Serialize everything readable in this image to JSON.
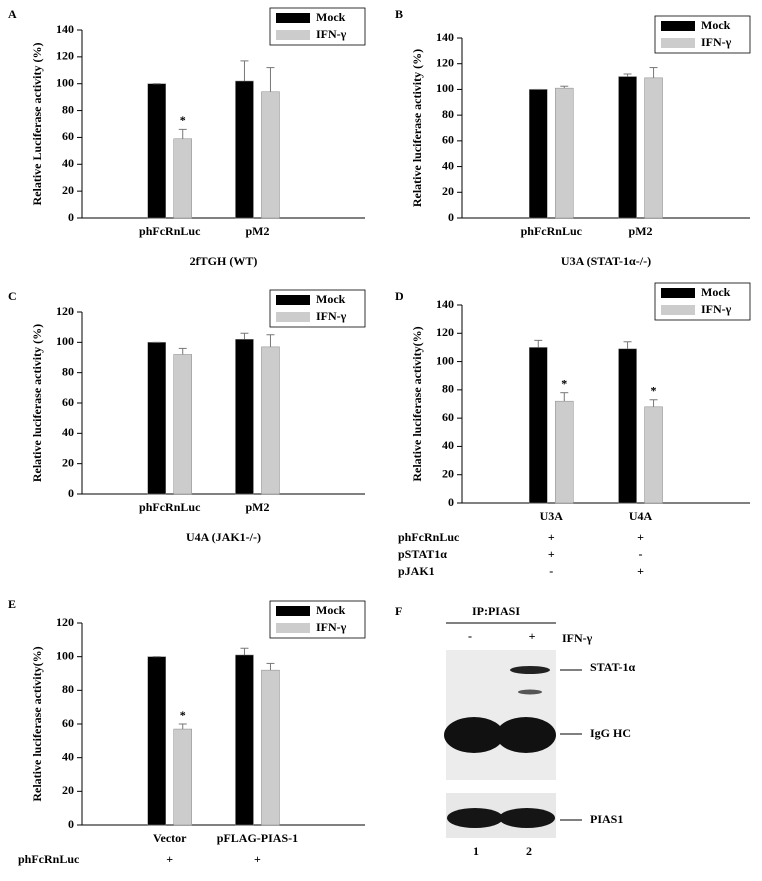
{
  "chart_data": [
    {
      "type": "bar",
      "panel": "A",
      "ylabel": "Relative Luciferase activity (%)",
      "xlabel": "2fTGH (WT)",
      "categories": [
        "phFcRnLuc",
        "pM2"
      ],
      "ylim": [
        0,
        140
      ],
      "yticks": [
        0,
        20,
        40,
        60,
        80,
        100,
        120,
        140
      ],
      "legend": "top-right",
      "series": [
        {
          "name": "Mock",
          "color": "#000000",
          "values": [
            100,
            102
          ],
          "errors": [
            0,
            15
          ],
          "annotations": [
            null,
            null
          ]
        },
        {
          "name": "IFN-γ",
          "color": "#cccccc",
          "values": [
            59,
            94
          ],
          "errors": [
            7,
            18
          ],
          "annotations": [
            "*",
            null
          ]
        }
      ]
    },
    {
      "type": "bar",
      "panel": "B",
      "ylabel": "Relative luciferase activity (%)",
      "xlabel": "U3A (STAT-1α-/-)",
      "categories": [
        "phFcRnLuc",
        "pM2"
      ],
      "ylim": [
        0,
        140
      ],
      "yticks": [
        0,
        20,
        40,
        60,
        80,
        100,
        120,
        140
      ],
      "legend": "top-right",
      "series": [
        {
          "name": "Mock",
          "color": "#000000",
          "values": [
            100,
            110
          ],
          "errors": [
            0,
            2
          ],
          "annotations": [
            null,
            null
          ]
        },
        {
          "name": "IFN-γ",
          "color": "#cccccc",
          "values": [
            101,
            109
          ],
          "errors": [
            1.5,
            8
          ],
          "annotations": [
            null,
            null
          ]
        }
      ]
    },
    {
      "type": "bar",
      "panel": "C",
      "ylabel": "Relative luciferase activity (%)",
      "xlabel": "U4A (JAK1-/-)",
      "categories": [
        "phFcRnLuc",
        "pM2"
      ],
      "ylim": [
        0,
        120
      ],
      "yticks": [
        0,
        20,
        40,
        60,
        80,
        100,
        120
      ],
      "legend": "top-right",
      "series": [
        {
          "name": "Mock",
          "color": "#000000",
          "values": [
            100,
            102
          ],
          "errors": [
            0,
            4
          ],
          "annotations": [
            null,
            null
          ]
        },
        {
          "name": "IFN-γ",
          "color": "#cccccc",
          "values": [
            92,
            97
          ],
          "errors": [
            4,
            8
          ],
          "annotations": [
            null,
            null
          ]
        }
      ]
    },
    {
      "type": "bar",
      "panel": "D",
      "ylabel": "Relative luciferase activity(%)",
      "categories": [
        "U3A",
        "U4A"
      ],
      "ylim": [
        0,
        140
      ],
      "yticks": [
        0,
        20,
        40,
        60,
        80,
        100,
        120,
        140
      ],
      "legend": "top-right",
      "series": [
        {
          "name": "Mock",
          "color": "#000000",
          "values": [
            110,
            109
          ],
          "errors": [
            5,
            5
          ],
          "annotations": [
            null,
            null
          ]
        },
        {
          "name": "IFN-γ",
          "color": "#cccccc",
          "values": [
            72,
            68
          ],
          "errors": [
            6,
            5
          ],
          "annotations": [
            "*",
            "*"
          ]
        }
      ],
      "conditions": [
        {
          "label": "phFcRnLuc",
          "values": [
            "+",
            "+"
          ]
        },
        {
          "label": "pSTAT1α",
          "values": [
            "+",
            "-"
          ]
        },
        {
          "label": "pJAK1",
          "values": [
            "-",
            "+"
          ]
        }
      ]
    },
    {
      "type": "bar",
      "panel": "E",
      "ylabel": "Relative luciferase activity(%)",
      "categories": [
        "Vector",
        "pFLAG-PIAS-1"
      ],
      "ylim": [
        0,
        120
      ],
      "yticks": [
        0,
        20,
        40,
        60,
        80,
        100,
        120
      ],
      "legend": "top-right",
      "series": [
        {
          "name": "Mock",
          "color": "#000000",
          "values": [
            100,
            101
          ],
          "errors": [
            0,
            4
          ],
          "annotations": [
            null,
            null
          ]
        },
        {
          "name": "IFN-γ",
          "color": "#cccccc",
          "values": [
            57,
            92
          ],
          "errors": [
            3,
            4
          ],
          "annotations": [
            "*",
            null
          ]
        }
      ],
      "conditions": [
        {
          "label": "phFcRnLuc",
          "values": [
            "+",
            "+"
          ]
        }
      ]
    }
  ],
  "blot": {
    "panel": "F",
    "header": "IP:PIASI",
    "lanes": [
      "-",
      "+"
    ],
    "treatment": "IFN-γ",
    "bands": [
      "STAT-1α",
      "IgG HC",
      "PIAS1"
    ],
    "lane_numbers": [
      "1",
      "2"
    ]
  }
}
